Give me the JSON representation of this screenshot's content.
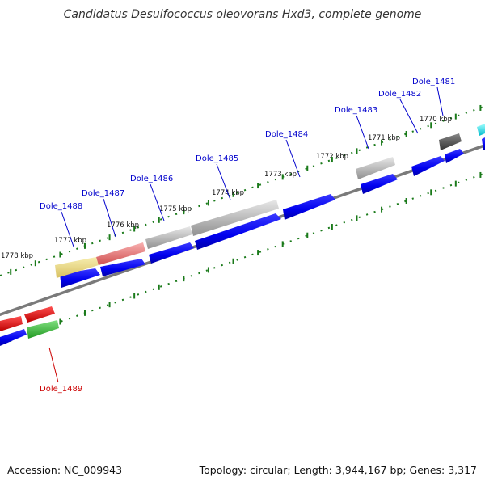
{
  "title": "Candidatus Desulfococcus oleovorans Hxd3, complete genome",
  "footer": {
    "accession": "Accession: NC_009943",
    "summary": "Topology: circular; Length: 3,944,167 bp; Genes: 3,317"
  },
  "colors": {
    "backbone": "#7a7a7a",
    "tick": "#1a7a1a",
    "forward_label": "#0000cc",
    "reverse_label": "#cc0000",
    "cds_blue": "#0000ee",
    "yellow": "#eee08a",
    "salmon": "#f08080",
    "gray": "#bdbdbd",
    "dark_gray": "#555555",
    "cyan": "#00e5ee",
    "red": "#ee0000",
    "green": "#33bb33"
  },
  "scale_labels": [
    "1778 kbp",
    "1777 kbp",
    "1776 kbp",
    "1775 kbp",
    "1774 kbp",
    "1773 kbp",
    "1772 kbp",
    "1771 kbp",
    "1770 kbp"
  ],
  "gene_labels": [
    {
      "name": "Dole_1481",
      "strand": "forward"
    },
    {
      "name": "Dole_1482",
      "strand": "forward"
    },
    {
      "name": "Dole_1483",
      "strand": "forward"
    },
    {
      "name": "Dole_1484",
      "strand": "forward"
    },
    {
      "name": "Dole_1485",
      "strand": "forward"
    },
    {
      "name": "Dole_1486",
      "strand": "forward"
    },
    {
      "name": "Dole_1487",
      "strand": "forward"
    },
    {
      "name": "Dole_1488",
      "strand": "forward"
    },
    {
      "name": "Dole_1489",
      "strand": "reverse"
    }
  ]
}
